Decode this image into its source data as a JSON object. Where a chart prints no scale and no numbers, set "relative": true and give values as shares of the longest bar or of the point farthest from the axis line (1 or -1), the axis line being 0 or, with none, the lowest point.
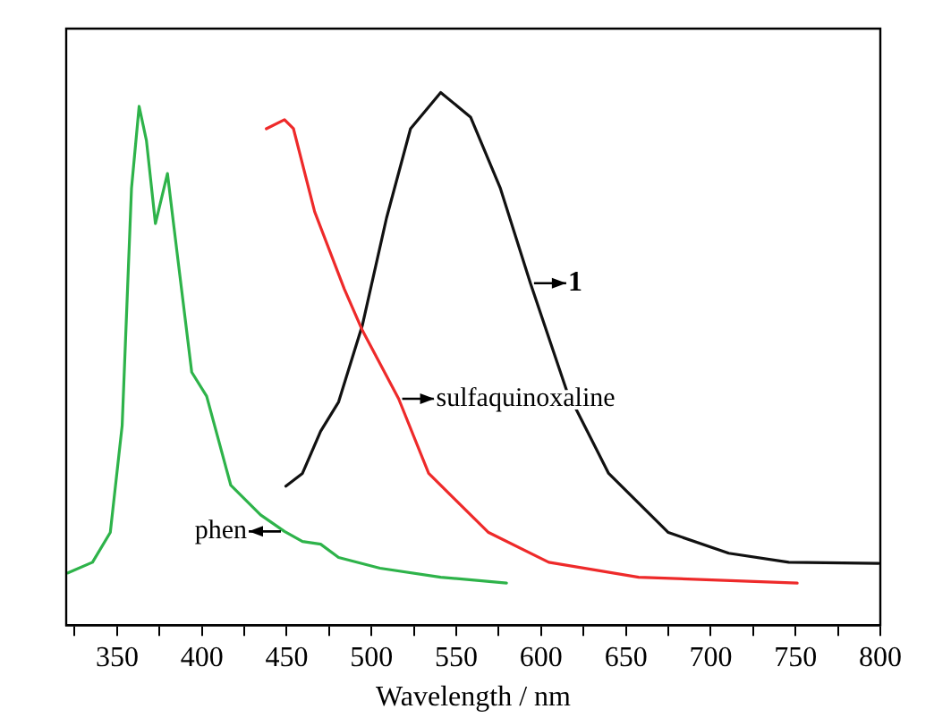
{
  "chart_data": {
    "type": "line",
    "relative": true,
    "xlabel": "Wavelength / nm",
    "xlim": [
      320,
      800
    ],
    "xticks": [
      {
        "value": 325,
        "label": null
      },
      350,
      {
        "value": 375,
        "label": null
      },
      400,
      {
        "value": 425,
        "label": null
      },
      450,
      {
        "value": 475,
        "label": null
      },
      500,
      {
        "value": 525,
        "label": null
      },
      550,
      {
        "value": 575,
        "label": null
      },
      600,
      {
        "value": 625,
        "label": null
      },
      650,
      {
        "value": 675,
        "label": null
      },
      700,
      {
        "value": 725,
        "label": null
      },
      750,
      {
        "value": 775,
        "label": null
      },
      800
    ],
    "grid": false,
    "legend": false,
    "marker": "none",
    "line_style": "solid",
    "series": [
      {
        "name": "phen",
        "color": "#2eb34a",
        "x": [
          321,
          335.5,
          346,
          353,
          358.5,
          363,
          367.3,
          372.6,
          379.7,
          385,
          394,
          402.8,
          417,
          434.6,
          448.7,
          459.3,
          470,
          480.6,
          505,
          540.8,
          579.6
        ],
        "values": [
          0.098,
          0.118,
          0.174,
          0.375,
          0.82,
          0.974,
          0.91,
          0.754,
          0.848,
          0.709,
          0.475,
          0.43,
          0.263,
          0.207,
          0.176,
          0.157,
          0.152,
          0.127,
          0.107,
          0.09,
          0.079
        ]
      },
      {
        "name": "sulfaquinoxaline",
        "color": "#ee2a2a",
        "x": [
          438,
          448.7,
          454,
          466.5,
          484,
          494.7,
          516,
          533.7,
          569,
          604.5,
          657.5,
          751
        ],
        "values": [
          0.932,
          0.949,
          0.932,
          0.776,
          0.631,
          0.553,
          0.425,
          0.285,
          0.174,
          0.118,
          0.09,
          0.079
        ]
      },
      {
        "name": "1",
        "color": "#111111",
        "x": [
          449.5,
          459.3,
          470,
          480.6,
          494.7,
          508.9,
          523,
          540.8,
          558.4,
          576,
          593.7,
          615,
          639.8,
          675,
          710.6,
          746,
          799
        ],
        "values": [
          0.261,
          0.285,
          0.364,
          0.419,
          0.564,
          0.765,
          0.932,
          1.0,
          0.954,
          0.82,
          0.642,
          0.441,
          0.285,
          0.174,
          0.135,
          0.118,
          0.116
        ]
      }
    ]
  }
}
